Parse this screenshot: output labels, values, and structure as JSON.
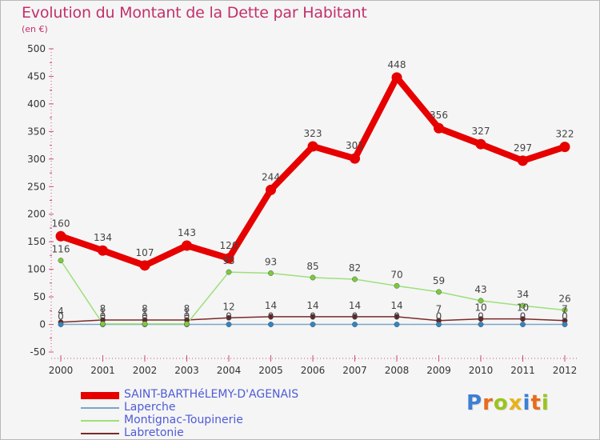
{
  "title": "Evolution du Montant de la Dette par Habitant",
  "subtitle": "(en €)",
  "colors": {
    "title": "#c2306b",
    "legend_text": "#4f5bd5",
    "background": "#f5f5f5"
  },
  "logo": {
    "text": "Proxiti",
    "letters": [
      "P",
      "r",
      "o",
      "x",
      "i",
      "t",
      "i"
    ],
    "colors": [
      "#3c7fd4",
      "#e96b1a",
      "#9bc41e",
      "#e9b21a",
      "#3c7fd4",
      "#e96b1a",
      "#9bc41e"
    ]
  },
  "chart_data": {
    "type": "line",
    "title": "Evolution du Montant de la Dette par Habitant",
    "subtitle": "(en €)",
    "x": [
      "2000",
      "2001",
      "2002",
      "2003",
      "2004",
      "2005",
      "2006",
      "2007",
      "2008",
      "2009",
      "2010",
      "2011",
      "2012"
    ],
    "y_ticks": [
      500,
      450,
      400,
      350,
      300,
      250,
      200,
      150,
      100,
      50,
      0,
      -50
    ],
    "ylim": [
      -50,
      500
    ],
    "grid": false,
    "legend_position": "bottom-left",
    "series": [
      {
        "name": "SAINT-BARTHéLEMY-D'AGENAIS",
        "color": "#e60000",
        "marker": "#e60000",
        "width": 8,
        "values": [
          160,
          134,
          107,
          143,
          120,
          244,
          323,
          301,
          448,
          356,
          327,
          297,
          322
        ],
        "labels": [
          "160",
          "134",
          "107",
          "143",
          "120",
          "244",
          "323",
          "301",
          "448",
          "356",
          "327",
          "297",
          "322"
        ]
      },
      {
        "name": "Laperche",
        "color": "#7aa6c8",
        "marker": "#2e86c1",
        "width": 1.5,
        "values": [
          0,
          0,
          0,
          0,
          0,
          0,
          0,
          0,
          0,
          0,
          0,
          0,
          0
        ],
        "labels": [
          "0",
          "0",
          "0",
          "0",
          "0",
          "0",
          "0",
          "0",
          "0",
          "0",
          "0",
          "0",
          "0"
        ]
      },
      {
        "name": "Montignac-Toupinerie",
        "color": "#9be07a",
        "marker": "#7acc3a",
        "width": 1.5,
        "values": [
          116,
          1,
          1,
          1,
          95,
          93,
          85,
          82,
          70,
          59,
          43,
          34,
          26
        ],
        "labels": [
          "116",
          "1",
          "1",
          "1",
          "95",
          "93",
          "85",
          "82",
          "70",
          "59",
          "43",
          "34",
          "26"
        ]
      },
      {
        "name": "Labretonie",
        "color": "#7a2a2a",
        "marker": "#6e1f1f",
        "width": 1.5,
        "values": [
          4,
          8,
          8,
          8,
          12,
          14,
          14,
          14,
          14,
          7,
          10,
          10,
          7
        ],
        "labels": [
          "4",
          "8",
          "8",
          "8",
          "12",
          "14",
          "14",
          "14",
          "14",
          "7",
          "10",
          "10",
          "7"
        ]
      }
    ]
  }
}
